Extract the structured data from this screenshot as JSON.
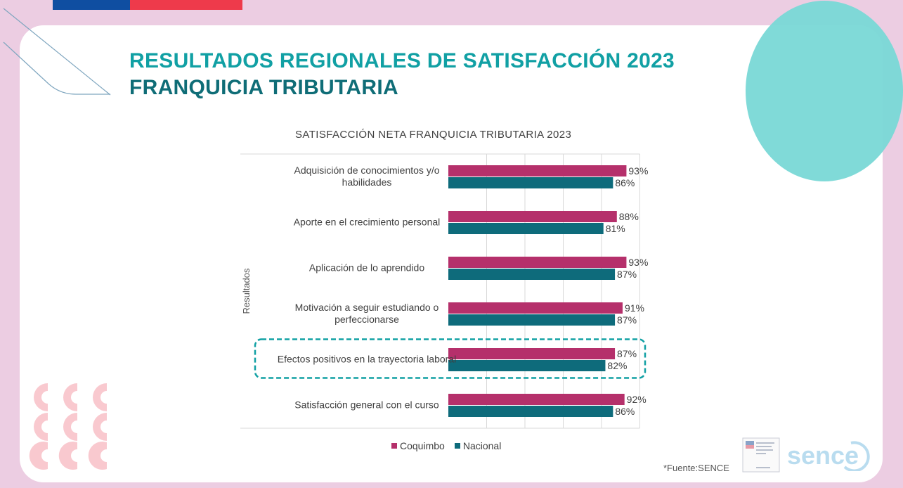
{
  "header": {
    "title_line1": "RESULTADOS REGIONALES DE SATISFACCIÓN 2023",
    "title_line2": "FRANQUICIA TRIBUTARIA"
  },
  "colors": {
    "coquimbo": "#b5306b",
    "nacional": "#0e6b7b",
    "highlight": "#11a0a4",
    "title_light": "#11a0a4",
    "title_dark": "#0f6d77"
  },
  "footer": {
    "source": "*Fuente:SENCE",
    "logo_text": "sence"
  },
  "chart_data": {
    "type": "bar",
    "orientation": "horizontal",
    "title": "SATISFACCIÓN NETA FRANQUICIA TRIBUTARIA 2023",
    "ylabel": "Resultados",
    "categories": [
      [
        "Adquisición de conocimientos y/o",
        "habilidades"
      ],
      [
        "Aporte en el crecimiento personal"
      ],
      [
        "Aplicación de lo aprendido"
      ],
      [
        "Motivación a seguir estudiando o",
        "perfeccionarse"
      ],
      [
        "Efectos positivos en la trayectoria laboral"
      ],
      [
        "Satisfacción general con el curso"
      ]
    ],
    "series": [
      {
        "name": "Coquimbo",
        "values": [
          93,
          88,
          93,
          91,
          87,
          92
        ],
        "labels": [
          "93%",
          "88%",
          "93%",
          "91%",
          "87%",
          "92%"
        ]
      },
      {
        "name": "Nacional",
        "values": [
          86,
          81,
          87,
          87,
          82,
          86
        ],
        "labels": [
          "86%",
          "81%",
          "87%",
          "87%",
          "82%",
          "86%"
        ]
      }
    ],
    "xlim": [
      0,
      100
    ],
    "highlighted_category": "Efectos positivos en la trayectoria laboral",
    "legend_position": "bottom",
    "grid": true
  }
}
